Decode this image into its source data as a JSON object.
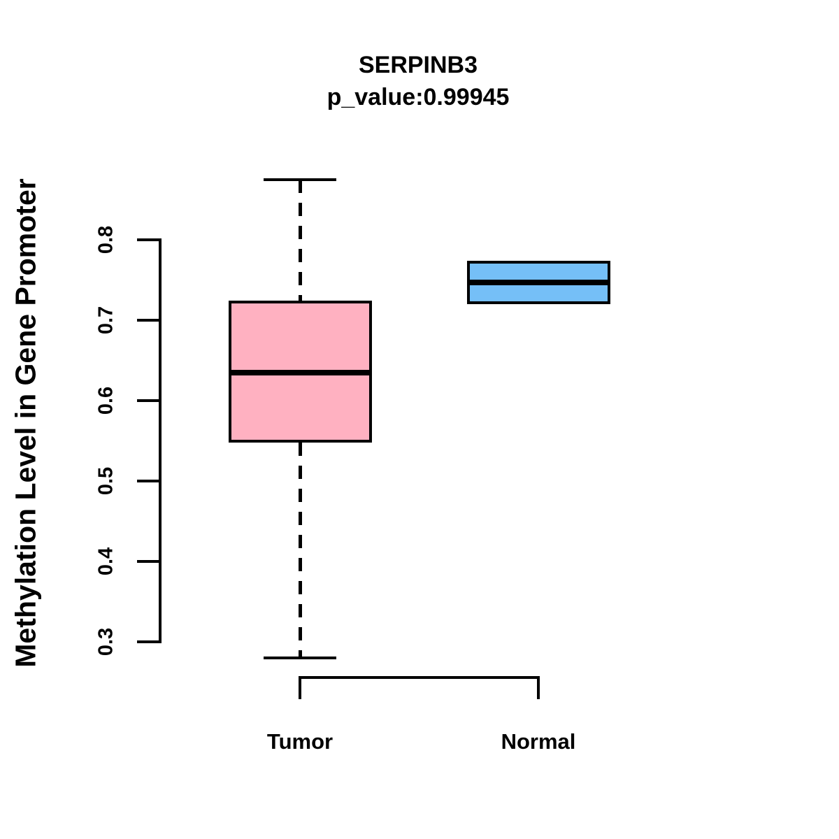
{
  "chart_data": {
    "type": "boxplot",
    "title": "SERPINB3",
    "subtitle": "p_value:0.99945",
    "ylabel": "Methylation Level in Gene Promoter",
    "xlabel": "",
    "y_axis": {
      "tick_labels": [
        "0.3",
        "0.4",
        "0.5",
        "0.6",
        "0.7",
        "0.8"
      ],
      "tick_values": [
        0.3,
        0.4,
        0.5,
        0.6,
        0.7,
        0.8
      ],
      "range": [
        0.3,
        0.8
      ]
    },
    "categories": [
      "Tumor",
      "Normal"
    ],
    "groups": [
      {
        "label": "Tumor",
        "fill": "#FFB1C1",
        "whisker_low": 0.28,
        "q1": 0.548,
        "median": 0.635,
        "q3": 0.724,
        "whisker_high": 0.875,
        "show_whiskers": true
      },
      {
        "label": "Normal",
        "fill": "#75BFF7",
        "whisker_low": 0.72,
        "q1": 0.72,
        "median": 0.747,
        "q3": 0.774,
        "whisker_high": 0.774,
        "show_whiskers": false
      }
    ],
    "stroke_color": "#000000",
    "background": "#FFFFFF",
    "grid": false,
    "legend": false
  }
}
